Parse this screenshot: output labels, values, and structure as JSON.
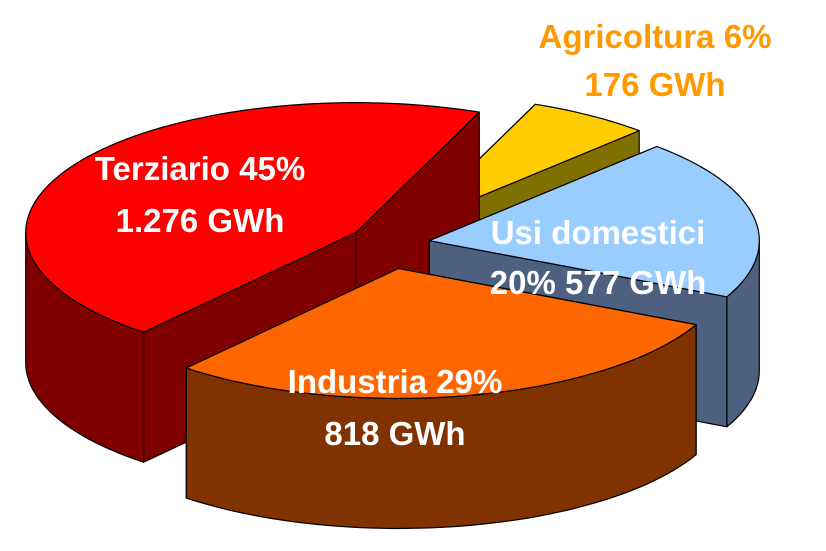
{
  "chart_data": {
    "type": "pie",
    "categories": [
      "Agricoltura",
      "Usi domestici",
      "Industria",
      "Terziario"
    ],
    "values": [
      6,
      20,
      29,
      45
    ],
    "value_labels": [
      "6%",
      "20%",
      "29%",
      "45%"
    ],
    "gwh": [
      176,
      577,
      818,
      1276
    ],
    "gwh_labels": [
      "176 GWh",
      "577 GWh",
      "818 GWh",
      "1.276 GWh"
    ],
    "colors": [
      "#ffcc00",
      "#99ccff",
      "#ff6600",
      "#ff0000"
    ],
    "side_colors": [
      "#807000",
      "#4d6080",
      "#803300",
      "#800000"
    ],
    "label_colors": [
      "#ff9900",
      "#ffffff",
      "#ffffff",
      "#ffffff"
    ]
  }
}
